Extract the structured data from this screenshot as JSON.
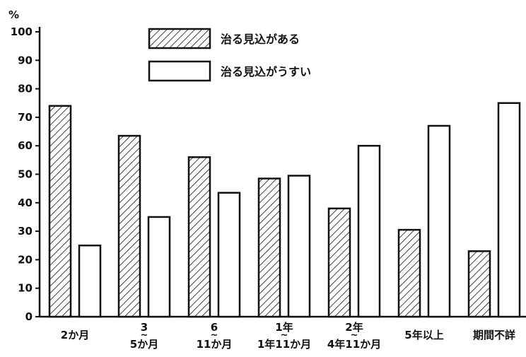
{
  "chart_data": {
    "type": "bar",
    "unit_label": "%",
    "ylim": [
      0,
      100
    ],
    "yticks": [
      "0",
      "10",
      "20",
      "30",
      "40",
      "50",
      "60",
      "70",
      "80",
      "90",
      "100"
    ],
    "categories": [
      [
        "2か月"
      ],
      [
        "3",
        "~",
        "5か月"
      ],
      [
        "6",
        "~",
        "11か月"
      ],
      [
        "1年",
        "~",
        "1年11か月"
      ],
      [
        "2年",
        "~",
        "4年11か月"
      ],
      [
        "5年以上"
      ],
      [
        "期間不詳"
      ]
    ],
    "series": [
      {
        "name": "治る見込がある",
        "style": "hatched",
        "values": [
          74,
          63.5,
          56,
          48.5,
          38,
          30.5,
          23
        ]
      },
      {
        "name": "治る見込がうすい",
        "style": "plain",
        "values": [
          25,
          35,
          43.5,
          49.5,
          60,
          67,
          75
        ]
      }
    ],
    "grid": false,
    "legend": "top-center"
  }
}
